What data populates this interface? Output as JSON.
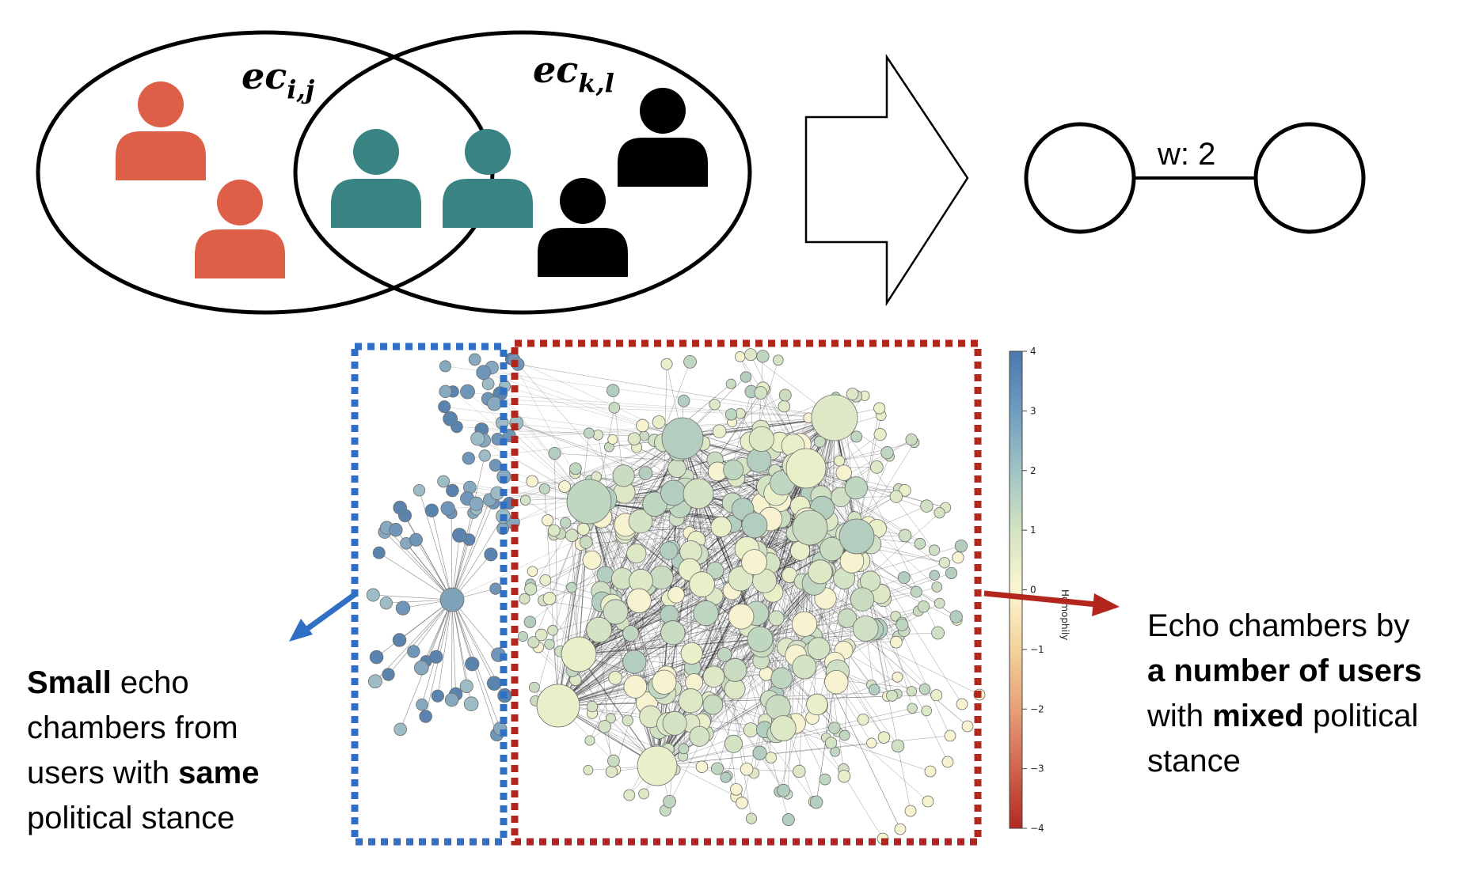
{
  "venn": {
    "label_left": {
      "base": "ec",
      "sub": "i,j"
    },
    "label_right": {
      "base": "ec",
      "sub": "k,l"
    },
    "colors": {
      "red": "#de5f47",
      "teal": "#3a8383",
      "black": "#000000"
    }
  },
  "graph": {
    "edge_label": "w: 2"
  },
  "network": {
    "colorbar_title": "Homophily",
    "colorbar_ticks": [
      "4",
      "3",
      "2",
      "1",
      "0",
      "−1",
      "−2",
      "−3",
      "−4"
    ],
    "box_colors": {
      "blue": "#2f6fc4",
      "red": "#b3261e"
    }
  },
  "left_caption": {
    "line1": {
      "bold": "Small",
      "text": " echo"
    },
    "line2": "chambers from",
    "line3": {
      "text": "users with ",
      "bold": "same"
    },
    "line4": "political stance"
  },
  "right_caption": {
    "line1": "Echo chambers by",
    "line2": {
      "bold": "a number of users"
    },
    "line3": {
      "text": "with ",
      "bold": "mixed",
      "text2": " political"
    },
    "line4": "stance"
  }
}
